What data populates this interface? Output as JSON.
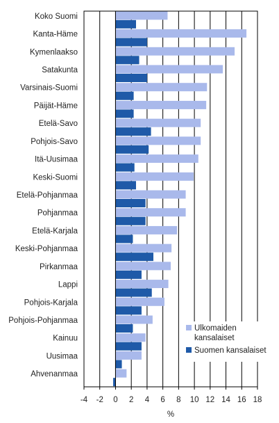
{
  "chart_data": {
    "type": "bar",
    "orientation": "horizontal",
    "title": "",
    "xlabel": "%",
    "ylabel": "",
    "xlim": [
      -4,
      18
    ],
    "xticks": [
      -4,
      -2,
      0,
      2,
      4,
      6,
      8,
      10,
      12,
      14,
      16,
      18
    ],
    "grid": true,
    "legend_position": "bottom-right",
    "categories": [
      "Koko Suomi",
      "Kanta-Häme",
      "Kymenlaakso",
      "Satakunta",
      "Varsinais-Suomi",
      "Päijät-Häme",
      "Etelä-Savo",
      "Pohjois-Savo",
      "Itä-Uusimaa",
      "Keski-Suomi",
      "Etelä-Pohjanmaa",
      "Pohjanmaa",
      "Etelä-Karjala",
      "Keski-Pohjanmaa",
      "Pirkanmaa",
      "Lappi",
      "Pohjois-Karjala",
      "Pohjois-Pohjanmaa",
      "Kainuu",
      "Uusimaa",
      "Ahvenanmaa"
    ],
    "series": [
      {
        "name": "Ulkomaiden kansalaiset",
        "legend_lines": [
          "Ulkomaiden",
          "kansalaiset"
        ],
        "color": "#a9b9eb",
        "values": [
          6.6,
          16.6,
          15.1,
          13.6,
          11.6,
          11.5,
          10.8,
          10.8,
          10.5,
          9.9,
          8.9,
          8.9,
          7.8,
          7.1,
          7.0,
          6.7,
          6.2,
          4.7,
          3.8,
          3.3,
          1.4
        ]
      },
      {
        "name": "Suomen kansalaiset",
        "legend_lines": [
          "Suomen kansalaiset"
        ],
        "color": "#1f5aa8",
        "values": [
          2.6,
          4.0,
          3.0,
          4.0,
          2.3,
          2.3,
          4.5,
          4.2,
          2.4,
          2.6,
          3.8,
          3.8,
          2.2,
          4.8,
          3.3,
          4.6,
          3.3,
          2.2,
          3.3,
          0.8,
          -0.3
        ]
      }
    ]
  }
}
